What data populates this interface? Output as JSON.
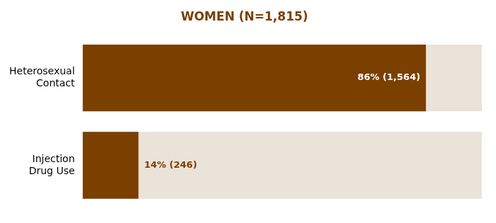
{
  "chart_data": {
    "type": "bar",
    "orientation": "horizontal",
    "title": "WOMEN (N=1,815)",
    "categories": [
      "Heterosexual\nContact",
      "Injection\nDrug Use"
    ],
    "values": [
      86,
      14
    ],
    "value_labels": [
      "86% (1,564)",
      "14% (246)"
    ],
    "data_labels": true,
    "color": "#7B3F00",
    "xlim": [
      0,
      100
    ],
    "grid": false,
    "legend": false,
    "tick_labels": "y"
  }
}
